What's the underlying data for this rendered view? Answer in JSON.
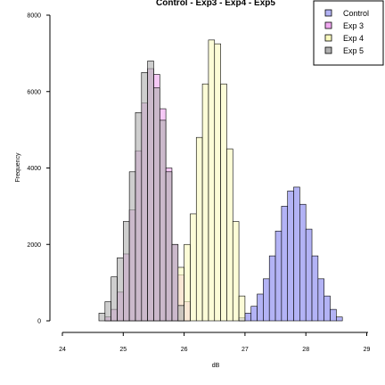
{
  "chart_data": {
    "type": "bar",
    "title": "Control - Exp3 - Exp4 - Exp5",
    "xlabel": "dB",
    "ylabel": "Frequency",
    "xlim": [
      23.8,
      29.1
    ],
    "ylim": [
      0,
      8000
    ],
    "xticks": [
      24,
      25,
      26,
      27,
      28,
      29
    ],
    "yticks": [
      0,
      2000,
      4000,
      6000,
      8000
    ],
    "bin_width": 0.1,
    "legend_position": "top-right",
    "grid": false,
    "series": [
      {
        "name": "Control",
        "color": "#b3b3f5",
        "bin_starts": [
          26.9,
          27.0,
          27.1,
          27.2,
          27.3,
          27.4,
          27.5,
          27.6,
          27.7,
          27.8,
          27.9,
          28.0,
          28.1,
          28.2,
          28.3,
          28.4,
          28.5
        ],
        "values": [
          80,
          200,
          380,
          700,
          1100,
          1700,
          2350,
          3000,
          3400,
          3500,
          3050,
          2400,
          1700,
          1100,
          650,
          300,
          100
        ]
      },
      {
        "name": "Exp 3",
        "color": "#f0a8f0",
        "bin_starts": [
          24.7,
          24.8,
          24.9,
          25.0,
          25.1,
          25.2,
          25.3,
          25.4,
          25.5,
          25.6,
          25.7,
          25.8,
          25.9,
          26.0
        ],
        "values": [
          100,
          300,
          750,
          1750,
          2900,
          4450,
          5700,
          6600,
          6450,
          5550,
          4000,
          2000,
          1200,
          500
        ]
      },
      {
        "name": "Exp 4",
        "color": "#fafabe",
        "bin_starts": [
          25.9,
          26.0,
          26.1,
          26.2,
          26.3,
          26.4,
          26.5,
          26.6,
          26.7,
          26.8,
          26.9
        ],
        "values": [
          1400,
          2000,
          2800,
          4800,
          6200,
          7350,
          7250,
          6200,
          4500,
          2600,
          650
        ]
      },
      {
        "name": "Exp 5",
        "color": "#b0b0b0",
        "bin_starts": [
          24.6,
          24.7,
          24.8,
          24.9,
          25.0,
          25.1,
          25.2,
          25.3,
          25.4,
          25.5,
          25.6,
          25.7,
          25.8,
          25.9
        ],
        "values": [
          200,
          500,
          1150,
          1650,
          2600,
          3900,
          5450,
          6500,
          6800,
          6100,
          5250,
          3900,
          2000,
          400
        ]
      }
    ]
  }
}
